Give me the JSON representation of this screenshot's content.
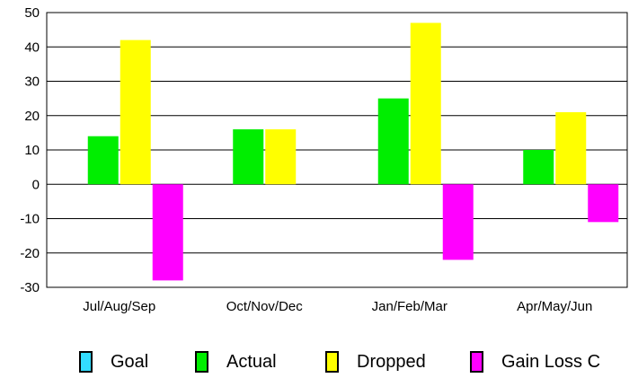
{
  "chart_data": {
    "type": "bar",
    "title": "",
    "xlabel": "",
    "ylabel": "",
    "ylim": [
      -30,
      50
    ],
    "yticks": [
      -30,
      -20,
      -10,
      0,
      10,
      20,
      30,
      40,
      50
    ],
    "grid": true,
    "legend_position": "bottom",
    "categories": [
      "Jul/Aug/Sep",
      "Oct/Nov/Dec",
      "Jan/Feb/Mar",
      "Apr/May/Jun"
    ],
    "series": [
      {
        "name": "Goal",
        "color": "#33ddff",
        "values": [
          0,
          0,
          0,
          0
        ]
      },
      {
        "name": "Actual",
        "color": "#00ee00",
        "values": [
          14,
          16,
          25,
          10
        ]
      },
      {
        "name": "Dropped",
        "color": "#ffff00",
        "values": [
          42,
          16,
          47,
          21
        ]
      },
      {
        "name": "Gain Loss C",
        "color": "#ff00ff",
        "values": [
          -28,
          0,
          -22,
          -11
        ]
      }
    ]
  }
}
